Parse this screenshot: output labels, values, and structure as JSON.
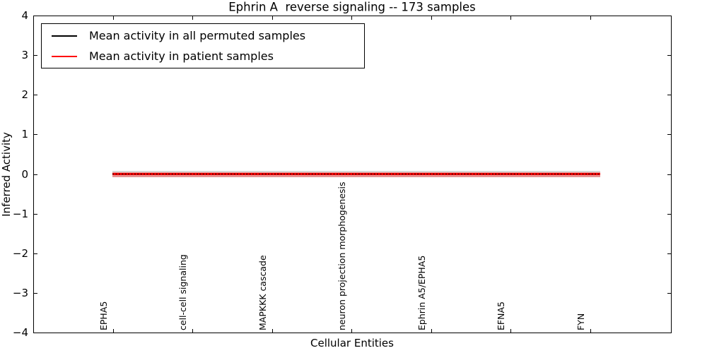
{
  "chart_data": {
    "type": "line",
    "title": "Ephrin A  reverse signaling -- 173 samples",
    "xlabel": "Cellular Entities",
    "ylabel": "Inferred Activity",
    "ylim": [
      -4,
      4
    ],
    "grid": false,
    "legend_position": "upper left",
    "y_ticks": [
      4,
      3,
      2,
      1,
      0,
      -1,
      -2,
      -3,
      -4
    ],
    "y_tick_labels": [
      "4",
      "3",
      "2",
      "1",
      "0",
      "−1",
      "−2",
      "−3",
      "−4"
    ],
    "categories": [
      "EPHA5",
      "cell-cell signaling",
      "MAPKKK cascade",
      "neuron projection morphogenesis",
      "Ephrin A5/EPHA5",
      "EFNA5",
      "FYN"
    ],
    "series": [
      {
        "name": "Mean activity in all permuted samples",
        "color": "#000000",
        "style": "dashed",
        "values": [
          0,
          0,
          0,
          0,
          0,
          0,
          0
        ],
        "band_halfwidth": 0.08
      },
      {
        "name": "Mean activity in patient samples",
        "color": "#ff0000",
        "style": "solid",
        "values": [
          0,
          0,
          0,
          0,
          0,
          0,
          0
        ],
        "band_halfwidth": 0.06
      }
    ]
  },
  "legend": {
    "items": [
      {
        "label": "Mean activity in all permuted samples",
        "color": "#000000"
      },
      {
        "label": "Mean activity in patient samples",
        "color": "#ff0000"
      }
    ]
  }
}
